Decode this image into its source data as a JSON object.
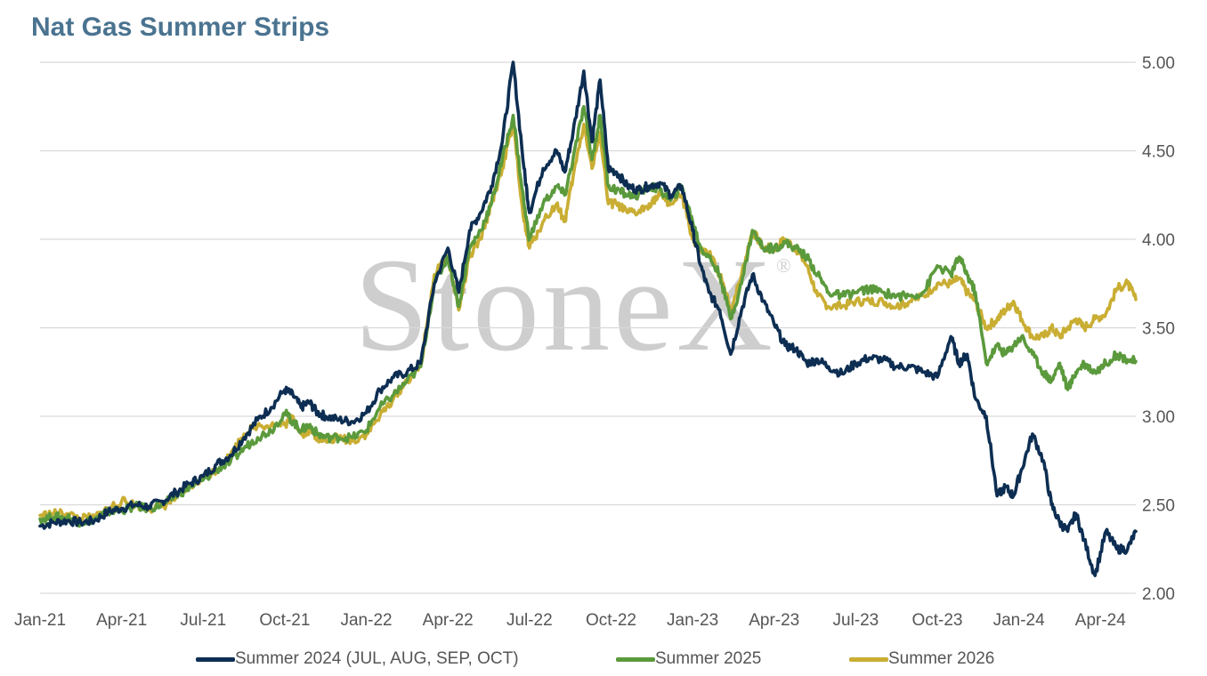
{
  "colors": {
    "title": "#4a7390",
    "grid": "#d9d9d9",
    "tick_text": "#555555",
    "watermark": "#c9c9c9"
  },
  "watermark": {
    "text": "StoneX",
    "mark": "®"
  },
  "chart_data": {
    "type": "line",
    "title": "Nat Gas Summer Strips",
    "xlabel": "",
    "ylabel": "",
    "x_tick_labels": [
      "Jan-21",
      "Apr-21",
      "Jul-21",
      "Oct-21",
      "Jan-22",
      "Apr-22",
      "Jul-22",
      "Oct-22",
      "Jan-23",
      "Apr-23",
      "Jul-23",
      "Oct-23",
      "Jan-24",
      "Apr-24"
    ],
    "x_tick_months": [
      0,
      3,
      6,
      9,
      12,
      15,
      18,
      21,
      24,
      27,
      30,
      33,
      36,
      39
    ],
    "xlim_months": [
      0,
      40.3
    ],
    "ylim": [
      2.0,
      5.0
    ],
    "y_ticks": [
      "2.00",
      "2.50",
      "3.00",
      "3.50",
      "4.00",
      "4.50",
      "5.00"
    ],
    "y_axis_side": "right",
    "grid": "horizontal",
    "legend_position": "bottom",
    "series": [
      {
        "name": "Summer 2024 (JUL, AUG, SEP, OCT)",
        "color": "#0d2e52",
        "x_months": [
          0,
          0.5,
          1,
          1.5,
          2,
          2.5,
          3,
          3.5,
          4,
          4.5,
          5,
          5.5,
          6,
          6.5,
          7,
          7.5,
          8,
          8.5,
          9,
          9.3,
          9.6,
          9.9,
          10.2,
          10.5,
          11,
          11.5,
          12,
          12.5,
          13,
          13.5,
          14,
          14.5,
          15,
          15.4,
          15.8,
          16.2,
          16.6,
          17,
          17.4,
          17.8,
          18,
          18.5,
          19,
          19.3,
          19.6,
          20,
          20.3,
          20.6,
          20.9,
          21.2,
          21.6,
          22,
          22.4,
          22.8,
          23.2,
          23.6,
          24,
          24.3,
          24.6,
          25,
          25.4,
          25.8,
          26.2,
          26.6,
          27,
          27.4,
          27.8,
          28.2,
          28.6,
          29,
          29.5,
          30,
          30.5,
          31,
          31.5,
          32,
          32.5,
          33,
          33.5,
          33.8,
          34.1,
          34.4,
          34.8,
          35.2,
          35.5,
          35.8,
          36.1,
          36.5,
          36.9,
          37.2,
          37.5,
          37.8,
          38.1,
          38.4,
          38.8,
          39.2,
          39.6,
          40,
          40.3
        ],
        "values": [
          2.38,
          2.4,
          2.41,
          2.4,
          2.41,
          2.46,
          2.48,
          2.5,
          2.49,
          2.52,
          2.57,
          2.62,
          2.66,
          2.73,
          2.78,
          2.88,
          2.98,
          3.05,
          3.15,
          3.12,
          3.05,
          3.08,
          3.02,
          3.0,
          2.98,
          2.97,
          3.02,
          3.15,
          3.22,
          3.25,
          3.3,
          3.75,
          3.95,
          3.7,
          4.05,
          4.15,
          4.3,
          4.55,
          5.0,
          4.4,
          4.15,
          4.4,
          4.5,
          4.38,
          4.6,
          4.95,
          4.55,
          4.9,
          4.4,
          4.38,
          4.3,
          4.28,
          4.3,
          4.32,
          4.25,
          4.3,
          4.05,
          3.85,
          3.7,
          3.6,
          3.35,
          3.6,
          3.8,
          3.65,
          3.52,
          3.4,
          3.38,
          3.3,
          3.32,
          3.28,
          3.24,
          3.3,
          3.33,
          3.32,
          3.28,
          3.28,
          3.25,
          3.22,
          3.45,
          3.3,
          3.35,
          3.1,
          3.0,
          2.55,
          2.6,
          2.55,
          2.7,
          2.9,
          2.75,
          2.5,
          2.4,
          2.35,
          2.45,
          2.3,
          2.1,
          2.35,
          2.25,
          2.25,
          2.35
        ]
      },
      {
        "name": "Summer 2025",
        "color": "#5b9a3c",
        "x_months": [
          0,
          0.5,
          1,
          1.5,
          2,
          2.5,
          3,
          3.5,
          4,
          4.5,
          5,
          5.5,
          6,
          6.5,
          7,
          7.5,
          8,
          8.5,
          9,
          9.3,
          9.6,
          9.9,
          10.2,
          10.5,
          11,
          11.5,
          12,
          12.5,
          13,
          13.5,
          14,
          14.5,
          15,
          15.4,
          15.8,
          16.2,
          16.6,
          17,
          17.4,
          17.8,
          18,
          18.5,
          19,
          19.3,
          19.6,
          20,
          20.3,
          20.6,
          20.9,
          21.2,
          21.6,
          22,
          22.4,
          22.8,
          23.2,
          23.6,
          24,
          24.3,
          24.6,
          25,
          25.4,
          25.8,
          26.2,
          26.6,
          27,
          27.4,
          27.8,
          28.2,
          28.6,
          29,
          29.5,
          30,
          30.5,
          31,
          31.5,
          32,
          32.5,
          33,
          33.5,
          33.8,
          34.1,
          34.4,
          34.8,
          35.2,
          35.5,
          35.8,
          36.1,
          36.5,
          36.9,
          37.2,
          37.5,
          37.8,
          38.1,
          38.4,
          38.8,
          39.2,
          39.6,
          40,
          40.3
        ],
        "values": [
          2.42,
          2.43,
          2.43,
          2.4,
          2.42,
          2.46,
          2.47,
          2.49,
          2.48,
          2.5,
          2.55,
          2.6,
          2.64,
          2.7,
          2.74,
          2.82,
          2.88,
          2.92,
          3.02,
          2.97,
          2.92,
          2.95,
          2.9,
          2.88,
          2.88,
          2.88,
          2.92,
          3.05,
          3.12,
          3.2,
          3.28,
          3.75,
          3.9,
          3.62,
          3.95,
          4.05,
          4.2,
          4.45,
          4.7,
          4.2,
          4.0,
          4.2,
          4.3,
          4.25,
          4.45,
          4.75,
          4.45,
          4.7,
          4.3,
          4.28,
          4.25,
          4.25,
          4.3,
          4.28,
          4.22,
          4.3,
          4.1,
          3.95,
          3.9,
          3.8,
          3.55,
          3.75,
          4.05,
          3.95,
          3.95,
          3.98,
          3.95,
          3.9,
          3.8,
          3.7,
          3.68,
          3.7,
          3.72,
          3.7,
          3.68,
          3.68,
          3.7,
          3.85,
          3.8,
          3.9,
          3.8,
          3.7,
          3.3,
          3.4,
          3.35,
          3.4,
          3.45,
          3.35,
          3.25,
          3.2,
          3.3,
          3.15,
          3.25,
          3.3,
          3.25,
          3.3,
          3.35,
          3.32,
          3.31
        ]
      },
      {
        "name": "Summer 2026",
        "color": "#c9ae33",
        "x_months": [
          0,
          0.5,
          1,
          1.5,
          2,
          2.5,
          3,
          3.5,
          4,
          4.5,
          5,
          5.5,
          6,
          6.5,
          7,
          7.5,
          8,
          8.5,
          9,
          9.3,
          9.6,
          9.9,
          10.2,
          10.5,
          11,
          11.5,
          12,
          12.5,
          13,
          13.5,
          14,
          14.5,
          15,
          15.4,
          15.8,
          16.2,
          16.6,
          17,
          17.4,
          17.8,
          18,
          18.5,
          19,
          19.3,
          19.6,
          20,
          20.3,
          20.6,
          20.9,
          21.2,
          21.6,
          22,
          22.4,
          22.8,
          23.2,
          23.6,
          24,
          24.3,
          24.6,
          25,
          25.4,
          25.8,
          26.2,
          26.6,
          27,
          27.4,
          27.8,
          28.2,
          28.6,
          29,
          29.5,
          30,
          30.5,
          31,
          31.5,
          32,
          32.5,
          33,
          33.5,
          33.8,
          34.1,
          34.4,
          34.8,
          35.2,
          35.5,
          35.8,
          36.1,
          36.5,
          36.9,
          37.2,
          37.5,
          37.8,
          38.1,
          38.4,
          38.8,
          39.2,
          39.6,
          40,
          40.3
        ],
        "values": [
          2.44,
          2.45,
          2.45,
          2.42,
          2.43,
          2.48,
          2.52,
          2.5,
          2.48,
          2.49,
          2.54,
          2.6,
          2.65,
          2.7,
          2.78,
          2.9,
          2.95,
          2.95,
          2.95,
          3.0,
          2.9,
          2.92,
          2.88,
          2.86,
          2.88,
          2.86,
          2.9,
          3.0,
          3.1,
          3.2,
          3.28,
          3.8,
          3.9,
          3.6,
          3.9,
          4.0,
          4.2,
          4.4,
          4.65,
          4.1,
          3.95,
          4.1,
          4.2,
          4.1,
          4.35,
          4.65,
          4.4,
          4.6,
          4.2,
          4.2,
          4.15,
          4.15,
          4.2,
          4.25,
          4.2,
          4.25,
          4.0,
          3.93,
          3.92,
          3.8,
          3.6,
          3.8,
          4.05,
          3.95,
          3.95,
          4.0,
          3.95,
          3.85,
          3.68,
          3.62,
          3.62,
          3.65,
          3.65,
          3.65,
          3.62,
          3.65,
          3.68,
          3.75,
          3.75,
          3.78,
          3.7,
          3.65,
          3.5,
          3.55,
          3.6,
          3.65,
          3.55,
          3.45,
          3.45,
          3.5,
          3.45,
          3.5,
          3.55,
          3.5,
          3.55,
          3.58,
          3.72,
          3.75,
          3.66
        ]
      }
    ]
  }
}
